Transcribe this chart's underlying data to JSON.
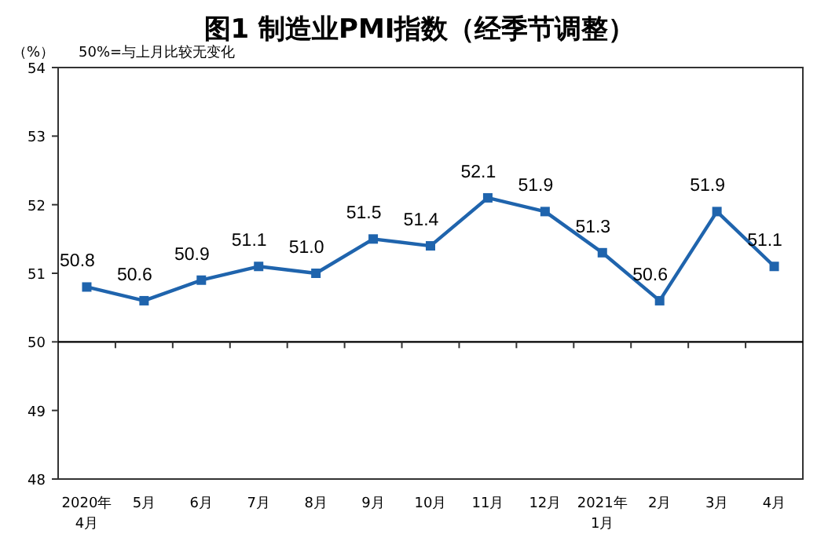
{
  "chart_data": {
    "type": "line",
    "title": "图1 制造业PMI指数（经季节调整）",
    "ylabel": "（%）",
    "annotations": [
      "50%=与上月比较无变化"
    ],
    "categories": [
      "2020年\n4月",
      "5月",
      "6月",
      "7月",
      "8月",
      "9月",
      "10月",
      "11月",
      "12月",
      "2021年\n1月",
      "2月",
      "3月",
      "4月"
    ],
    "series": [
      {
        "color": "#1f64ad",
        "values": [
          50.8,
          50.6,
          50.9,
          51.1,
          51.0,
          51.5,
          51.4,
          52.1,
          51.9,
          51.3,
          50.6,
          51.9,
          51.1
        ],
        "value_labels": [
          "50.8",
          "50.6",
          "50.9",
          "51.1",
          "51.0",
          "51.5",
          "51.4",
          "52.1",
          "51.9",
          "51.3",
          "50.6",
          "51.9",
          "51.1"
        ]
      }
    ],
    "ylim": [
      48,
      54
    ],
    "yticks": [
      48,
      49,
      50,
      51,
      52,
      53,
      54
    ],
    "ref_lines": [
      {
        "axis": "y",
        "value": 50,
        "color": "#000000"
      }
    ],
    "marker": "square",
    "line_style": "solid",
    "grid": false
  }
}
